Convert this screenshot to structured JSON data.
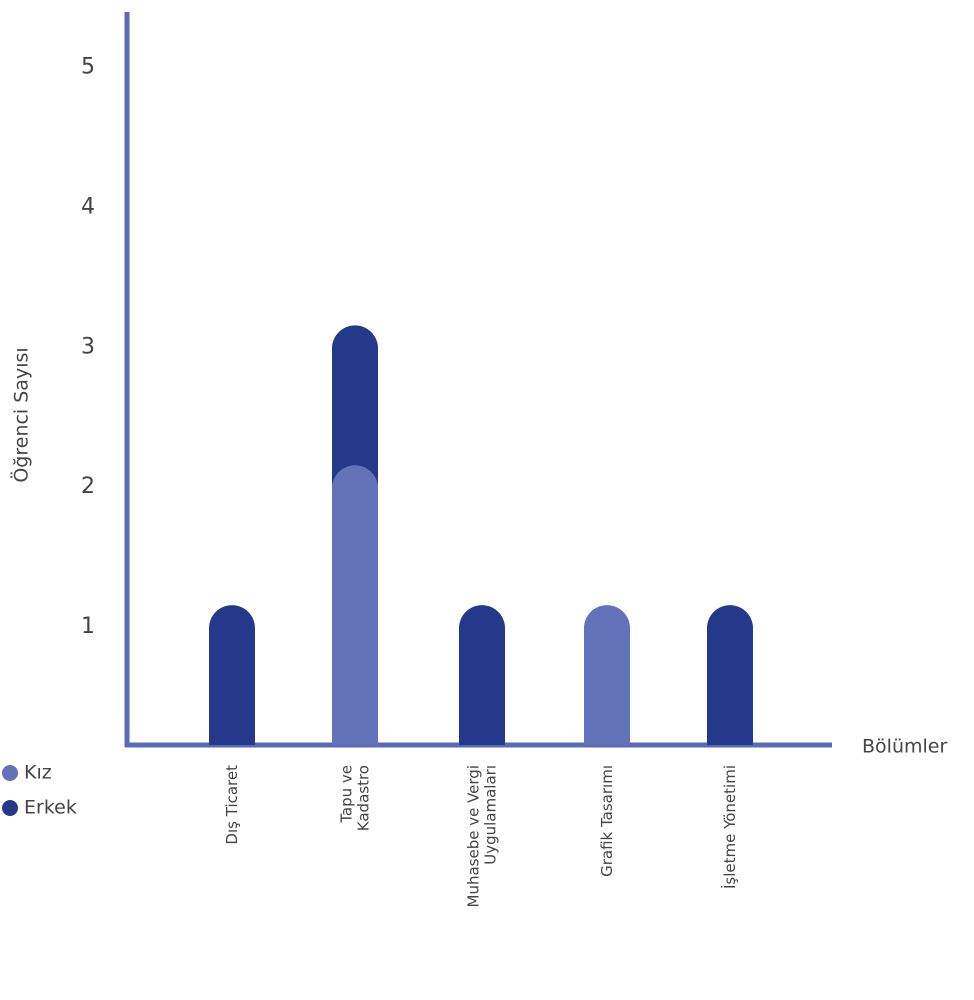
{
  "chart_data": {
    "type": "bar",
    "stacked": true,
    "y_label": "Öğrenci Sayısı",
    "x_label": "Bölümler",
    "categories": [
      "Dış Ticaret",
      "Tapu ve\nKadastro",
      "Muhasebe ve Vergi\nUygulamaları",
      "Grafik Tasarımı",
      "İşletme Yönetimi"
    ],
    "series": [
      {
        "name": "Kız",
        "color": "#6373b9",
        "values": [
          0,
          2,
          0,
          1,
          0
        ]
      },
      {
        "name": "Erkek",
        "color": "#25398a",
        "values": [
          1,
          1,
          1,
          0,
          1
        ]
      }
    ],
    "ylim": [
      0,
      5.24
    ],
    "yticks": [
      1,
      2,
      3,
      4,
      5
    ],
    "grid": false,
    "legend": "bottom-left"
  }
}
